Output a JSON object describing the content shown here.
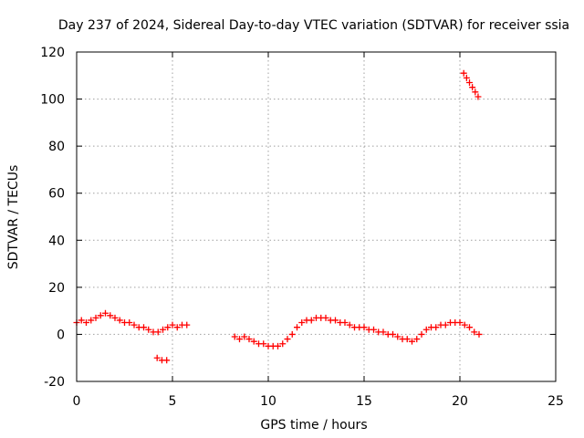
{
  "chart_data": {
    "type": "scatter",
    "title": "Day 237 of 2024, Sidereal Day-to-day VTEC variation (SDTVAR) for receiver ssia",
    "xlabel": "GPS time / hours",
    "ylabel": "SDTVAR / TECUs",
    "xlim": [
      0,
      25
    ],
    "ylim": [
      -20,
      120
    ],
    "xticks": [
      0,
      5,
      10,
      15,
      20,
      25
    ],
    "yticks": [
      -20,
      0,
      20,
      40,
      60,
      80,
      100,
      120
    ],
    "xtick_labels": [
      "0",
      "5",
      "10",
      "15",
      "20",
      "25"
    ],
    "ytick_labels": [
      "-20",
      "0",
      "20",
      "40",
      "60",
      "80",
      "100",
      "120"
    ],
    "grid": true,
    "marker": "plus",
    "color": "#ff0000",
    "series": [
      {
        "name": "SDTVAR",
        "x": [
          0.0,
          0.25,
          0.5,
          0.75,
          1.0,
          1.25,
          1.5,
          1.75,
          2.0,
          2.25,
          2.5,
          2.75,
          3.0,
          3.25,
          3.5,
          3.75,
          4.0,
          4.25,
          4.5,
          4.75,
          5.0,
          5.25,
          5.5,
          5.75,
          4.2,
          4.45,
          4.7,
          8.25,
          8.5,
          8.75,
          9.0,
          9.25,
          9.5,
          9.75,
          10.0,
          10.25,
          10.5,
          10.75,
          11.0,
          11.25,
          11.5,
          11.75,
          12.0,
          12.25,
          12.5,
          12.75,
          13.0,
          13.25,
          13.5,
          13.75,
          14.0,
          14.25,
          14.5,
          14.75,
          15.0,
          15.25,
          15.5,
          15.75,
          16.0,
          16.25,
          16.5,
          16.75,
          17.0,
          17.25,
          17.5,
          17.75,
          18.0,
          18.25,
          18.5,
          18.75,
          19.0,
          19.25,
          19.5,
          19.75,
          20.0,
          20.25,
          20.5,
          20.75,
          21.0,
          20.2,
          20.35,
          20.5,
          20.65,
          20.8,
          20.95
        ],
        "y": [
          5,
          6,
          5,
          6,
          7,
          8,
          9,
          8,
          7,
          6,
          5,
          5,
          4,
          3,
          3,
          2,
          1,
          1,
          2,
          3,
          4,
          3,
          4,
          4,
          -10,
          -11,
          -11,
          -1,
          -2,
          -1,
          -2,
          -3,
          -4,
          -4,
          -5,
          -5,
          -5,
          -4,
          -2,
          0,
          3,
          5,
          6,
          6,
          7,
          7,
          7,
          6,
          6,
          5,
          5,
          4,
          3,
          3,
          3,
          2,
          2,
          1,
          1,
          0,
          0,
          -1,
          -2,
          -2,
          -3,
          -2,
          0,
          2,
          3,
          3,
          4,
          4,
          5,
          5,
          5,
          4,
          3,
          1,
          0,
          111,
          109,
          107,
          105,
          103,
          101
        ]
      }
    ]
  }
}
